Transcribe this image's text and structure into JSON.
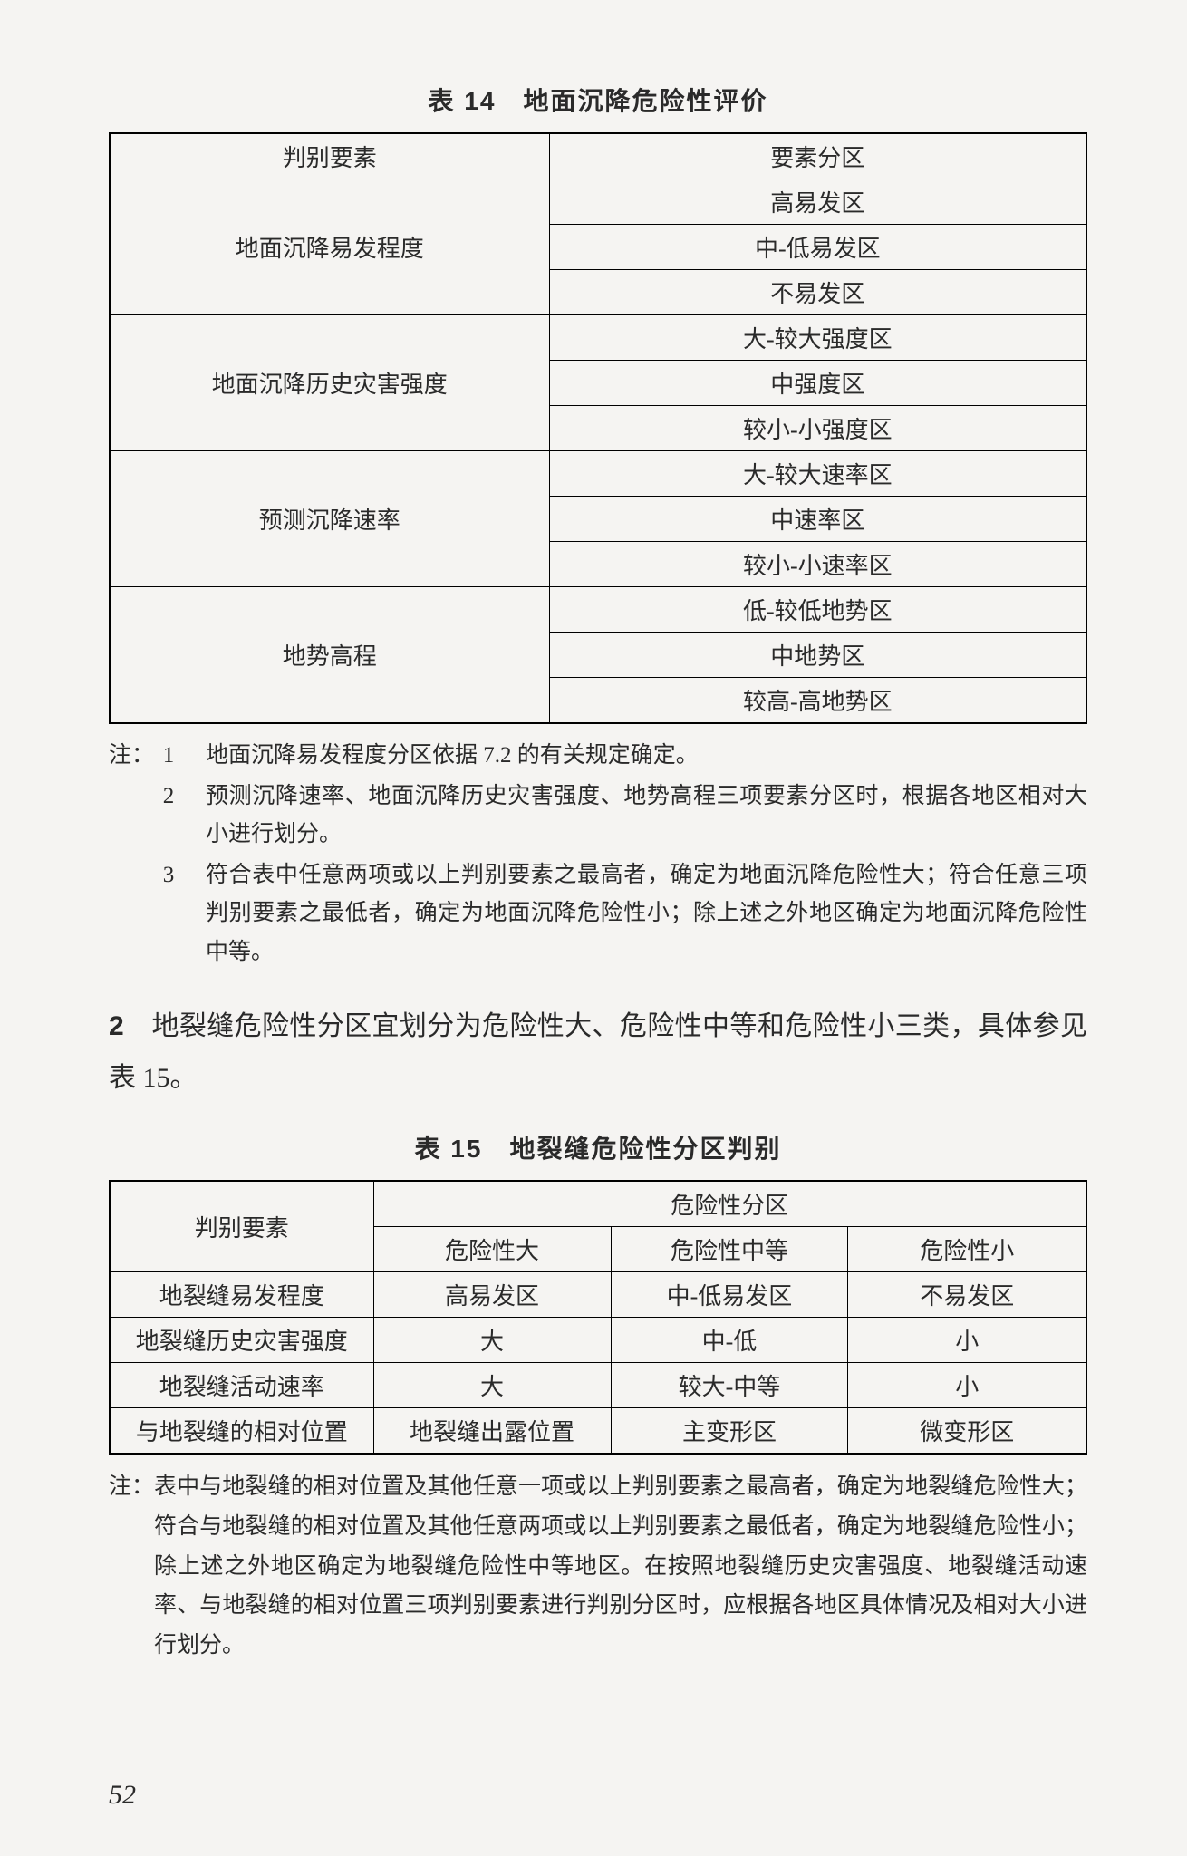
{
  "table14": {
    "title": "表 14　地面沉降危险性评价",
    "col_left": "判别要素",
    "col_right": "要素分区",
    "rows": [
      {
        "factor": "地面沉降易发程度",
        "zones": [
          "高易发区",
          "中-低易发区",
          "不易发区"
        ]
      },
      {
        "factor": "地面沉降历史灾害强度",
        "zones": [
          "大-较大强度区",
          "中强度区",
          "较小-小强度区"
        ]
      },
      {
        "factor": "预测沉降速率",
        "zones": [
          "大-较大速率区",
          "中速率区",
          "较小-小速率区"
        ]
      },
      {
        "factor": "地势高程",
        "zones": [
          "低-较低地势区",
          "中地势区",
          "较高-高地势区"
        ]
      }
    ]
  },
  "notes14": {
    "prefix": "注：",
    "items": [
      {
        "idx": "1",
        "text": "地面沉降易发程度分区依据 7.2 的有关规定确定。"
      },
      {
        "idx": "2",
        "text": "预测沉降速率、地面沉降历史灾害强度、地势高程三项要素分区时，根据各地区相对大小进行划分。"
      },
      {
        "idx": "3",
        "text": "符合表中任意两项或以上判别要素之最高者，确定为地面沉降危险性大；符合任意三项判别要素之最低者，确定为地面沉降危险性小；除上述之外地区确定为地面沉降危险性中等。"
      }
    ]
  },
  "paragraph": {
    "num": "2",
    "text": "　地裂缝危险性分区宜划分为危险性大、危险性中等和危险性小三类，具体参见表 15。"
  },
  "table15": {
    "title": "表 15　地裂缝危险性分区判别",
    "row_header": "判别要素",
    "group_header": "危险性分区",
    "cols": [
      "危险性大",
      "危险性中等",
      "危险性小"
    ],
    "rows": [
      {
        "factor": "地裂缝易发程度",
        "vals": [
          "高易发区",
          "中-低易发区",
          "不易发区"
        ]
      },
      {
        "factor": "地裂缝历史灾害强度",
        "vals": [
          "大",
          "中-低",
          "小"
        ]
      },
      {
        "factor": "地裂缝活动速率",
        "vals": [
          "大",
          "较大-中等",
          "小"
        ]
      },
      {
        "factor": "与地裂缝的相对位置",
        "vals": [
          "地裂缝出露位置",
          "主变形区",
          "微变形区"
        ]
      }
    ]
  },
  "notes15": {
    "prefix": "注：",
    "text": "表中与地裂缝的相对位置及其他任意一项或以上判别要素之最高者，确定为地裂缝危险性大；符合与地裂缝的相对位置及其他任意两项或以上判别要素之最低者，确定为地裂缝危险性小；除上述之外地区确定为地裂缝危险性中等地区。在按照地裂缝历史灾害强度、地裂缝活动速率、与地裂缝的相对位置三项判别要素进行判别分区时，应根据各地区具体情况及相对大小进行划分。"
  },
  "page": "52",
  "layout": {
    "t14_col_widths_pct": [
      45,
      55
    ],
    "t15_col_widths_pct": [
      27,
      24.3,
      24.3,
      24.4
    ]
  }
}
